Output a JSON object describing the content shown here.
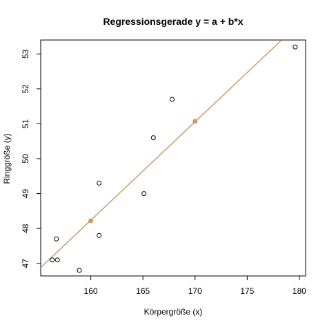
{
  "chart_data": {
    "type": "scatter",
    "title": "Regressionsgerade y = a + b*x",
    "xlabel": "Körpergröße (x)",
    "ylabel": "Ringgröße (y)",
    "xlim": [
      155.2,
      180.6
    ],
    "ylim": [
      46.64,
      53.4
    ],
    "x_ticks": [
      160,
      165,
      170,
      175,
      180
    ],
    "y_ticks": [
      47,
      48,
      49,
      50,
      51,
      52,
      53
    ],
    "grid": false,
    "points": [
      {
        "x": 156.3,
        "y": 47.1
      },
      {
        "x": 156.7,
        "y": 47.7
      },
      {
        "x": 156.8,
        "y": 47.1
      },
      {
        "x": 158.9,
        "y": 46.8
      },
      {
        "x": 160.8,
        "y": 49.3
      },
      {
        "x": 160.8,
        "y": 47.8
      },
      {
        "x": 165.1,
        "y": 49.0
      },
      {
        "x": 166.0,
        "y": 50.6
      },
      {
        "x": 167.8,
        "y": 51.7
      },
      {
        "x": 179.6,
        "y": 53.2
      }
    ],
    "regression_line": {
      "color": "#CD9B66",
      "x1": 155.2,
      "y1": 46.88,
      "x2": 178.3,
      "y2": 53.4
    },
    "highlight_points": [
      {
        "x": 160.0,
        "y": 48.22
      },
      {
        "x": 170.0,
        "y": 51.07
      }
    ],
    "point_color": "#000000"
  }
}
